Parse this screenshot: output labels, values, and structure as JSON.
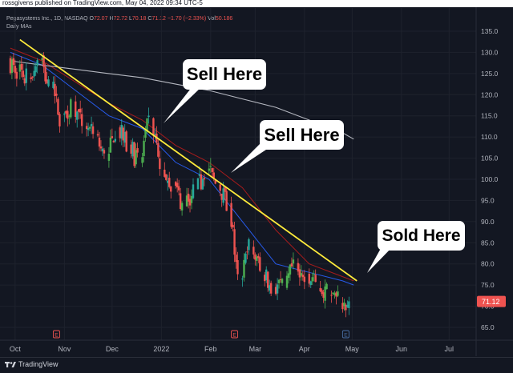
{
  "header": {
    "published": "rossgivens published on TradingView.com, May 04, 2022 09:34 UTC-5"
  },
  "legend": {
    "symbol": "Pegasystems Inc., 1D, NASDAQ",
    "o_label": "O",
    "o": "72.07",
    "h_label": "H",
    "h": "72.72",
    "l_label": "L",
    "l": "70.18",
    "c_label": "C",
    "c": "71.12",
    "change": "−1.70 (−2.33%)",
    "vol_label": "Vol",
    "vol": "50.186",
    "indicator": "Daily MAs"
  },
  "callouts": {
    "first": "Sell Here",
    "second": "Sell Here",
    "third": "Sold Here"
  },
  "footer": {
    "brand": "TradingView"
  },
  "colors": {
    "background": "#131722",
    "up": "#26a69a",
    "up_bright": "#4caf50",
    "down": "#ef5350",
    "trendline": "#ffeb3b",
    "ma_blue": "#2962ff",
    "ma_red": "#b71c1c",
    "ma_white": "#d1d4dc"
  },
  "chart_data": {
    "type": "line",
    "title": "Pegasystems Inc., 1D, NASDAQ",
    "xlabel": "",
    "ylabel": "",
    "x_ticks": [
      "Oct",
      "Nov",
      "Dec",
      "2022",
      "Feb",
      "Mar",
      "Apr",
      "May",
      "Jun",
      "Jul"
    ],
    "y_ticks": [
      65,
      70,
      75,
      80,
      85,
      90,
      95,
      100,
      105,
      110,
      115,
      120,
      125,
      130,
      135
    ],
    "ylim": [
      62,
      138
    ],
    "last_price": "71.12",
    "earnings_markers": [
      "E",
      "E",
      "E"
    ],
    "series": [
      {
        "name": "",
        "style": "candlestick",
        "x": [
          "2021-09-28",
          "2021-10-04",
          "2021-10-11",
          "2021-10-18",
          "2021-10-25",
          "2021-11-01",
          "2021-11-08",
          "2021-11-15",
          "2021-11-22",
          "2021-11-29",
          "2021-12-06",
          "2021-12-13",
          "2021-12-20",
          "2021-12-27",
          "2022-01-03",
          "2022-01-10",
          "2022-01-17",
          "2022-01-24",
          "2022-01-31",
          "2022-02-07",
          "2022-02-14",
          "2022-02-21",
          "2022-02-28",
          "2022-03-07",
          "2022-03-14",
          "2022-03-21",
          "2022-03-28",
          "2022-04-04",
          "2022-04-11",
          "2022-04-18",
          "2022-04-25",
          "2022-05-02"
        ],
        "y": [
          128,
          126,
          124,
          128,
          122,
          115,
          118,
          113,
          110,
          105,
          112,
          108,
          104,
          114,
          102,
          99,
          94,
          97,
          102,
          99,
          94,
          76,
          84,
          78,
          75,
          74,
          80,
          78,
          75,
          73,
          71,
          71.12
        ]
      },
      {
        "name": "",
        "style": "moving-average",
        "x": [
          "2021-09-28",
          "2021-10-18",
          "2021-11-08",
          "2021-11-29",
          "2021-12-20",
          "2022-01-10",
          "2022-01-31",
          "2022-02-21",
          "2022-03-14",
          "2022-04-04",
          "2022-04-25",
          "2022-05-02"
        ],
        "y": [
          130,
          127,
          121,
          115,
          112,
          104,
          100,
          90,
          80,
          78,
          76,
          75
        ]
      },
      {
        "name": "",
        "style": "moving-average",
        "x": [
          "2021-09-28",
          "2021-10-18",
          "2021-11-08",
          "2021-11-29",
          "2021-12-20",
          "2022-01-10",
          "2022-01-31",
          "2022-02-21",
          "2022-03-14",
          "2022-04-04",
          "2022-04-25",
          "2022-05-02"
        ],
        "y": [
          131,
          128,
          123,
          118,
          114,
          108,
          104,
          98,
          88,
          80,
          77,
          76
        ]
      },
      {
        "name": "",
        "style": "moving-average",
        "x": [
          "2021-09-28",
          "2021-10-18",
          "2021-11-08",
          "2021-11-29",
          "2021-12-20",
          "2022-01-10",
          "2022-01-31",
          "2022-02-21",
          "2022-03-14",
          "2022-04-04",
          "2022-04-25",
          "2022-05-02"
        ],
        "y": [
          128,
          127,
          126,
          125,
          124,
          122.5,
          121,
          119,
          117,
          114,
          111,
          109.5
        ]
      },
      {
        "name": "",
        "style": "trendline",
        "x": [
          "2021-10-04",
          "2022-05-04"
        ],
        "y": [
          133,
          76
        ]
      }
    ]
  }
}
